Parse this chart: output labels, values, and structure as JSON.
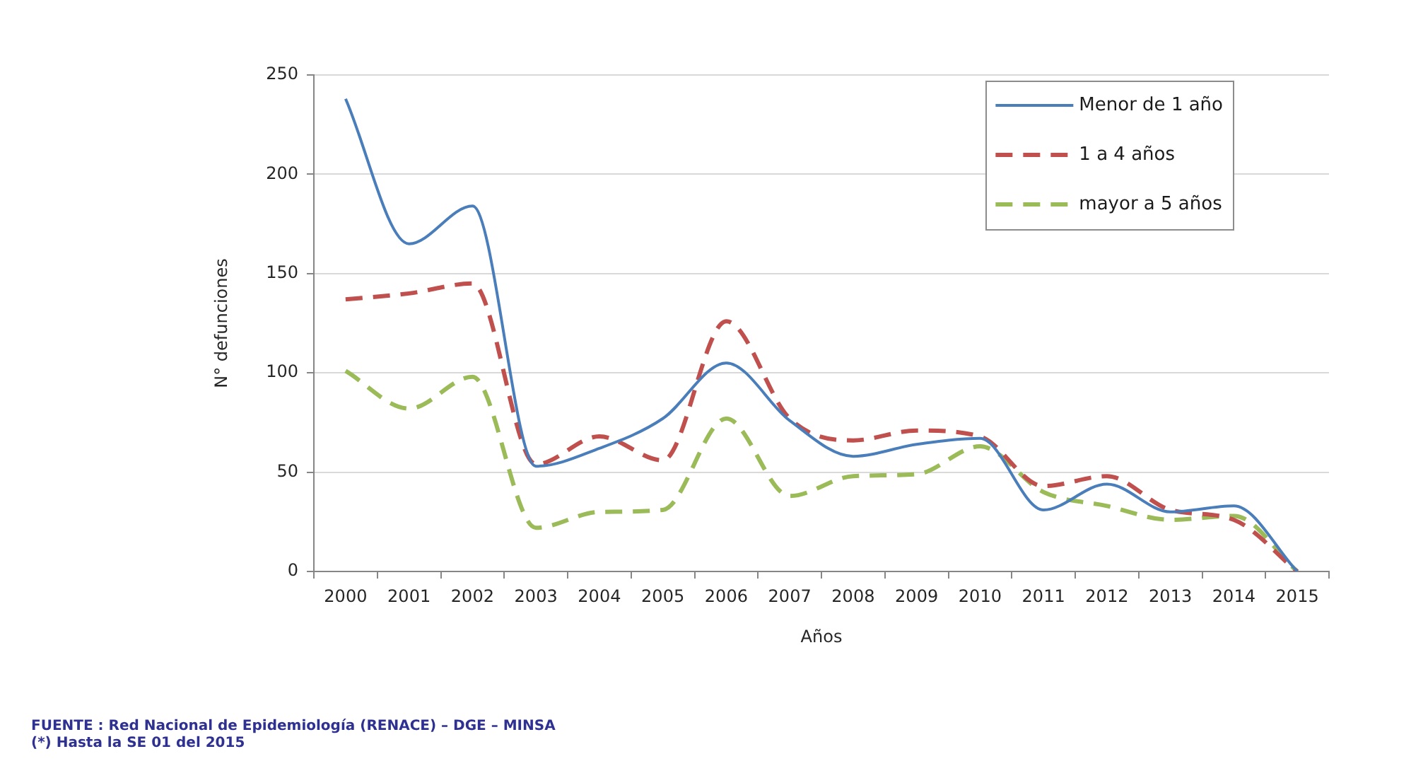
{
  "chart_data": {
    "type": "line",
    "xlabel": "Años",
    "ylabel": "N° defunciones",
    "categories": [
      "2000",
      "2001",
      "2002",
      "2003",
      "2004",
      "2005",
      "2006",
      "2007",
      "2008",
      "2009",
      "2010",
      "2011",
      "2012",
      "2013",
      "2014",
      "2015"
    ],
    "series": [
      {
        "name": "Menor de 1 año",
        "color": "#4a7ebb",
        "line_style": "solid",
        "values": [
          238,
          165,
          184,
          53,
          62,
          77,
          105,
          76,
          58,
          64,
          67,
          31,
          44,
          30,
          33,
          0
        ]
      },
      {
        "name": "1 a 4 años",
        "color": "#c0504d",
        "line_style": "dashed",
        "values": [
          137,
          140,
          145,
          54,
          68,
          56,
          126,
          77,
          66,
          71,
          68,
          43,
          48,
          31,
          26,
          0
        ]
      },
      {
        "name": "mayor a 5 años",
        "color": "#9bbb59",
        "line_style": "dashed",
        "values": [
          101,
          82,
          98,
          22,
          30,
          31,
          77,
          38,
          48,
          49,
          63,
          40,
          33,
          26,
          28,
          0
        ]
      }
    ],
    "ylim": [
      0,
      250
    ],
    "yticks": [
      0,
      50,
      100,
      150,
      200,
      250
    ],
    "grid": "y",
    "legend": "top right",
    "marker": "none",
    "annotations": [
      "FUENTE : Red Nacional de Epidemiología (RENACE) – DGE – MINSA",
      "(*) Hasta la SE 01 del 2015"
    ]
  }
}
